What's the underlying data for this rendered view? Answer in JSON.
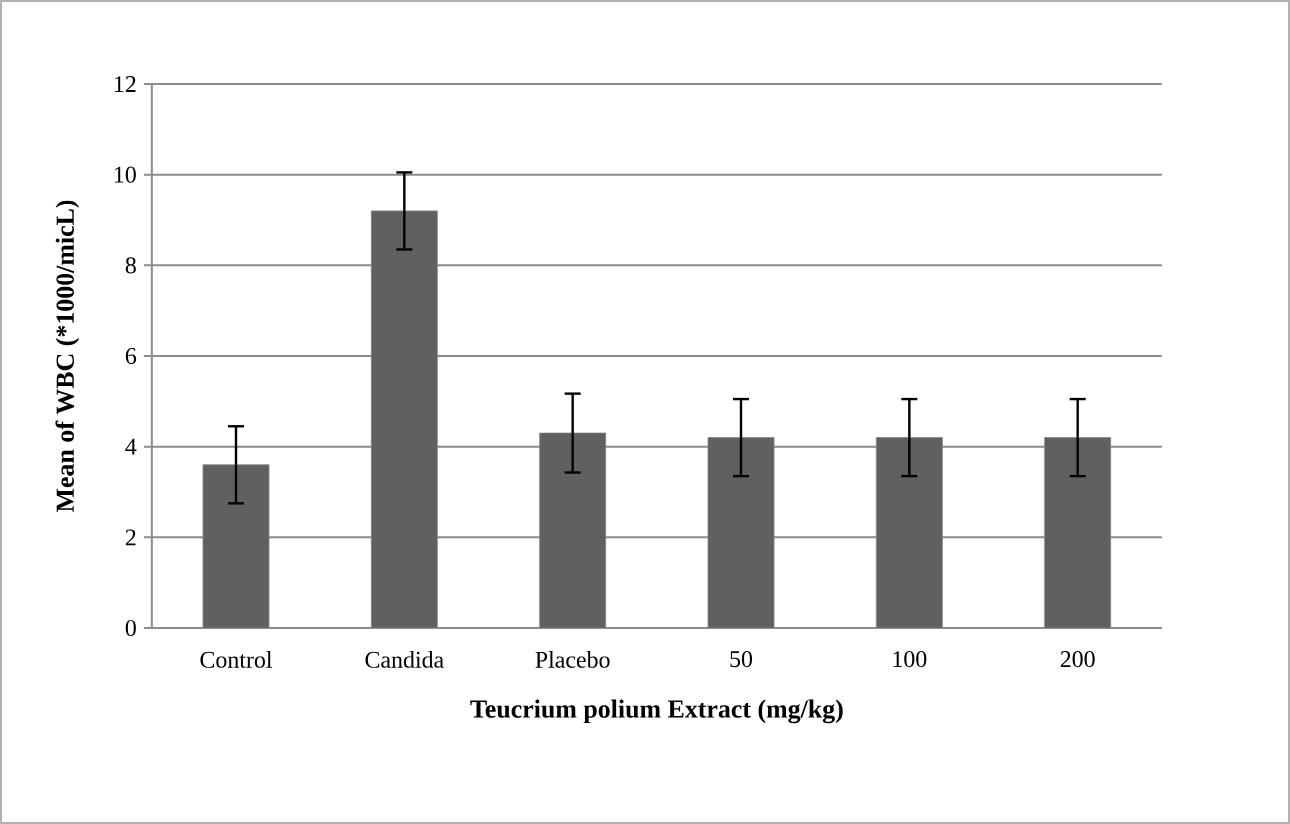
{
  "chart_data": {
    "type": "bar",
    "xlabel": "Teucrium polium Extract (mg/kg)",
    "ylabel": "Mean of WBC (*1000/micL)",
    "categories": [
      "Control",
      "Candida",
      "Placebo",
      "50",
      "100",
      "200"
    ],
    "values": [
      3.6,
      9.2,
      4.3,
      4.2,
      4.2,
      4.2
    ],
    "errors": [
      0.85,
      0.85,
      0.87,
      0.85,
      0.85,
      0.85
    ],
    "color": "#606060",
    "ylim": [
      0,
      12
    ],
    "yticks": [
      0,
      2,
      4,
      6,
      8,
      10,
      12
    ],
    "grid": "y"
  }
}
